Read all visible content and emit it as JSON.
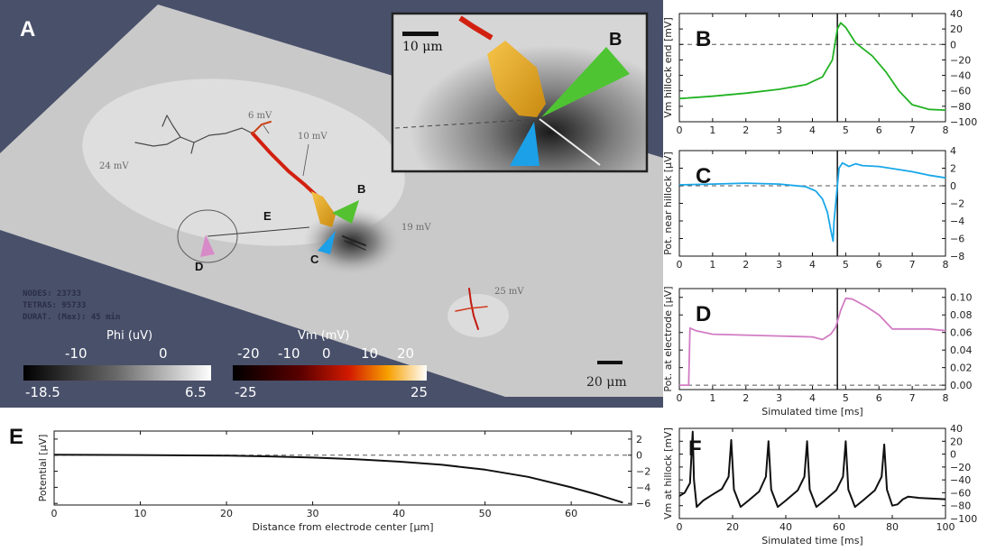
{
  "panel_A": {
    "letter": "A",
    "stats": [
      "NODES: 23733",
      "TETRAS: 95733",
      "DURAT. (Max): 45 min"
    ],
    "annotations": {
      "v6": "6 mV",
      "v10": "10 mV",
      "v24": "24 mV",
      "v19": "19 mV",
      "v25": "25 mV"
    },
    "markers": {
      "B": "B",
      "C": "C",
      "D": "D",
      "E": "E"
    },
    "phi_colorbar": {
      "title": "Phi (uV)",
      "t1": "-10",
      "t2": "0",
      "min": "-18.5",
      "max": "6.5"
    },
    "vm_colorbar": {
      "title": "Vm (mV)",
      "t1": "-20",
      "t2": "-10",
      "t3": "0",
      "t4": "10",
      "t5": "20",
      "min": "-25",
      "max": "25"
    },
    "scalebar": "20 μm"
  },
  "panel_B_inset": {
    "letter": "B",
    "scalebar": "10 μm"
  },
  "chart_data": [
    {
      "id": "B",
      "type": "line",
      "letter": "B",
      "ylabel": "Vm hillock end [mV]",
      "xlabel": "",
      "xlim": [
        0,
        8
      ],
      "ylim": [
        -100,
        40
      ],
      "xticks": [
        0,
        1,
        2,
        3,
        4,
        5,
        6,
        7,
        8
      ],
      "yticks": [
        -100,
        -80,
        -60,
        -40,
        -20,
        0,
        20,
        40
      ],
      "y_side": "right",
      "color": "#22b222",
      "zero_line": true,
      "vline": 4.75,
      "series": [
        {
          "x": [
            0,
            1,
            2,
            3,
            3.8,
            4.3,
            4.6,
            4.75,
            4.85,
            5.0,
            5.3,
            5.8,
            6.2,
            6.6,
            7.0,
            7.5,
            8.0
          ],
          "y": [
            -70,
            -67,
            -63,
            -58,
            -52,
            -42,
            -20,
            20,
            28,
            22,
            2,
            -15,
            -35,
            -60,
            -78,
            -84,
            -85
          ]
        }
      ]
    },
    {
      "id": "C",
      "type": "line",
      "letter": "C",
      "ylabel": "Pot. near hillock [μV]",
      "xlabel": "",
      "xlim": [
        0,
        8
      ],
      "ylim": [
        -8,
        4
      ],
      "xticks": [
        0,
        1,
        2,
        3,
        4,
        5,
        6,
        7,
        8
      ],
      "yticks": [
        -8,
        -6,
        -4,
        -2,
        0,
        2,
        4
      ],
      "y_side": "right",
      "color": "#1aa7e8",
      "zero_line": true,
      "vline": 4.75,
      "series": [
        {
          "x": [
            0,
            1,
            2,
            3,
            3.8,
            4.1,
            4.3,
            4.45,
            4.55,
            4.62,
            4.65,
            4.8,
            4.9,
            5.1,
            5.3,
            5.5,
            6.0,
            6.5,
            7.0,
            7.5,
            8.0
          ],
          "y": [
            0.1,
            0.2,
            0.3,
            0.2,
            -0.1,
            -0.6,
            -1.5,
            -3.0,
            -5.0,
            -6.3,
            -4.0,
            2.0,
            2.6,
            2.2,
            2.5,
            2.3,
            2.2,
            1.9,
            1.6,
            1.2,
            0.9
          ]
        }
      ]
    },
    {
      "id": "D",
      "type": "line",
      "letter": "D",
      "ylabel": "Pot. at electrode [μV]",
      "xlabel": "Simulated time [ms]",
      "xlim": [
        0,
        8
      ],
      "ylim": [
        -0.005,
        0.11
      ],
      "xticks": [
        0,
        1,
        2,
        3,
        4,
        5,
        6,
        7,
        8
      ],
      "yticks": [
        0.0,
        0.02,
        0.04,
        0.06,
        0.08,
        0.1
      ],
      "ytick_labels": [
        "0.00",
        "0.02",
        "0.04",
        "0.06",
        "0.08",
        "0.10"
      ],
      "y_side": "right",
      "color": "#d27cc4",
      "zero_line": true,
      "vline": 4.75,
      "series": [
        {
          "x": [
            0,
            0.28,
            0.32,
            0.5,
            1.0,
            2.0,
            3.0,
            4.0,
            4.3,
            4.55,
            4.7,
            4.85,
            5.0,
            5.2,
            5.6,
            6.0,
            6.4,
            7.0,
            7.5,
            8.0
          ],
          "y": [
            0.0,
            0.0,
            0.065,
            0.062,
            0.058,
            0.057,
            0.056,
            0.055,
            0.052,
            0.058,
            0.066,
            0.085,
            0.099,
            0.098,
            0.09,
            0.08,
            0.064,
            0.064,
            0.064,
            0.062
          ]
        }
      ]
    },
    {
      "id": "E",
      "type": "line",
      "letter": "E",
      "ylabel": "Potential [μV]",
      "xlabel": "Distance from electrode center [μm]",
      "xlim": [
        0,
        67
      ],
      "ylim": [
        -6.2,
        3
      ],
      "xticks": [
        0,
        10,
        20,
        30,
        40,
        50,
        60
      ],
      "yticks": [
        -6,
        -4,
        -2,
        0,
        2
      ],
      "y_side": "right",
      "color": "#111111",
      "zero_line": true,
      "vline": null,
      "series": [
        {
          "x": [
            0,
            10,
            20,
            25,
            30,
            35,
            40,
            45,
            50,
            55,
            60,
            63,
            66
          ],
          "y": [
            0.05,
            0.02,
            -0.05,
            -0.15,
            -0.3,
            -0.5,
            -0.8,
            -1.2,
            -1.8,
            -2.7,
            -4.0,
            -4.9,
            -5.9
          ]
        }
      ]
    },
    {
      "id": "F",
      "type": "line",
      "letter": "F",
      "ylabel": "Vm at hillock [mV]",
      "xlabel": "Simulated time [ms]",
      "xlim": [
        0,
        100
      ],
      "ylim": [
        -100,
        40
      ],
      "xticks": [
        0,
        20,
        40,
        60,
        80,
        100
      ],
      "yticks": [
        -100,
        -80,
        -60,
        -40,
        -20,
        0,
        20,
        40
      ],
      "y_side": "right",
      "color": "#111111",
      "zero_line": false,
      "vline": null,
      "series": [
        {
          "x": [
            0,
            2,
            4,
            5,
            5.5,
            6.5,
            9,
            12,
            16,
            18.5,
            19.5,
            20.5,
            23,
            26,
            30,
            32.5,
            33.5,
            34.5,
            37,
            40,
            44.5,
            47,
            48,
            49,
            51.5,
            54.5,
            59,
            61.5,
            62.5,
            63.5,
            66,
            69,
            73.5,
            76,
            77,
            78,
            80,
            82,
            84,
            86,
            90,
            95,
            100
          ],
          "y": [
            -65,
            -60,
            -45,
            35,
            -40,
            -82,
            -72,
            -64,
            -54,
            -35,
            22,
            -55,
            -82,
            -72,
            -58,
            -35,
            20,
            -55,
            -82,
            -72,
            -56,
            -35,
            20,
            -55,
            -82,
            -72,
            -56,
            -35,
            20,
            -55,
            -82,
            -72,
            -56,
            -35,
            15,
            -55,
            -80,
            -78,
            -70,
            -66,
            -68,
            -69,
            -70
          ]
        }
      ]
    }
  ]
}
